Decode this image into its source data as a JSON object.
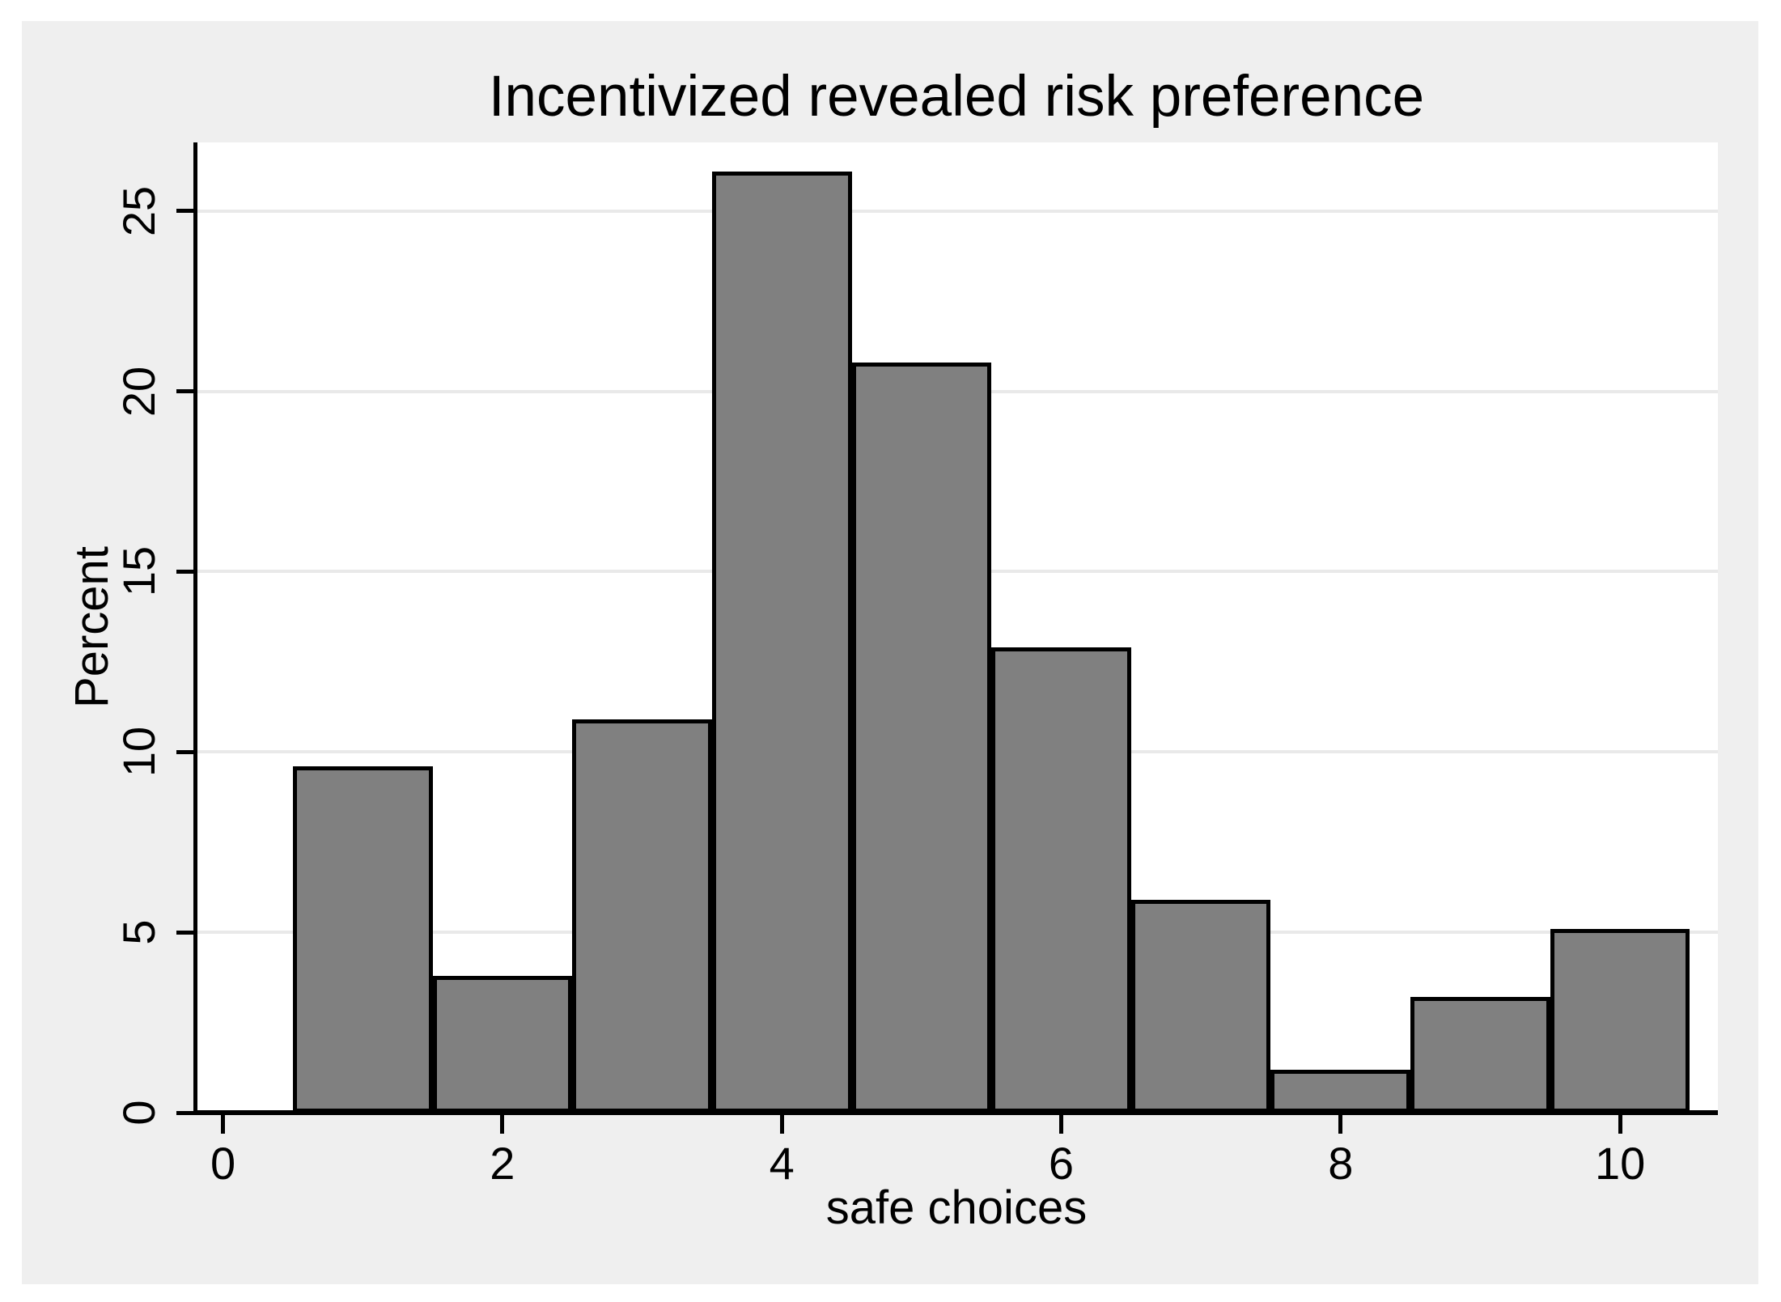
{
  "title": "Incentivized revealed risk preference",
  "chart_data": {
    "type": "bar",
    "subtype": "histogram",
    "title": "Incentivized revealed risk preference",
    "xlabel": "safe choices",
    "ylabel": "Percent",
    "bin_centers": [
      1,
      2,
      3,
      4,
      5,
      6,
      7,
      8,
      9,
      10
    ],
    "bin_width": 1,
    "values_percent": [
      9.6,
      3.8,
      10.9,
      26.1,
      20.8,
      12.9,
      5.9,
      1.2,
      3.2,
      5.1
    ],
    "x_ticks": [
      0,
      2,
      4,
      6,
      8,
      10
    ],
    "y_ticks": [
      0,
      5,
      10,
      15,
      20,
      25
    ],
    "xlim": [
      -0.2,
      10.7
    ],
    "ylim": [
      0,
      26.9
    ],
    "grid": "horizontal",
    "gridline_values": [
      5,
      10,
      15,
      20,
      25
    ],
    "legend": "none",
    "colors": {
      "bar_fill": "#808080",
      "bar_outline": "#000000",
      "plot_bg": "#ffffff",
      "figure_bg": "#efefef",
      "gridline": "#e9e9e9",
      "axis": "#000000",
      "text": "#000000",
      "page_bg": "#ffffff"
    }
  }
}
